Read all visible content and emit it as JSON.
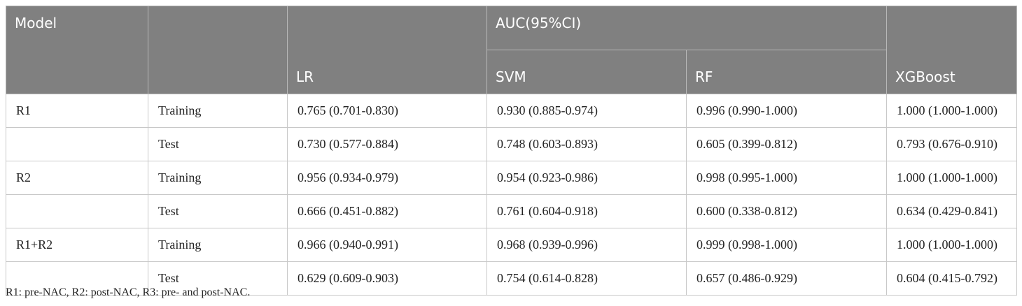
{
  "table": {
    "header": {
      "model": "Model",
      "auc": "AUC(95%CI)",
      "methods": [
        "LR",
        "SVM",
        "RF",
        "XGBoost"
      ]
    },
    "groups": [
      {
        "model": "R1",
        "rows": [
          {
            "set": "Training",
            "values": [
              "0.765 (0.701-0.830)",
              "0.930 (0.885-0.974)",
              "0.996 (0.990-1.000)",
              "1.000 (1.000-1.000)"
            ]
          },
          {
            "set": "Test",
            "values": [
              "0.730 (0.577-0.884)",
              "0.748 (0.603-0.893)",
              "0.605 (0.399-0.812)",
              "0.793 (0.676-0.910)"
            ]
          }
        ]
      },
      {
        "model": "R2",
        "rows": [
          {
            "set": "Training",
            "values": [
              "0.956 (0.934-0.979)",
              "0.954 (0.923-0.986)",
              "0.998 (0.995-1.000)",
              "1.000 (1.000-1.000)"
            ]
          },
          {
            "set": "Test",
            "values": [
              "0.666 (0.451-0.882)",
              "0.761 (0.604-0.918)",
              "0.600 (0.338-0.812)",
              "0.634 (0.429-0.841)"
            ]
          }
        ]
      },
      {
        "model": "R1+R2",
        "rows": [
          {
            "set": "Training",
            "values": [
              "0.966 (0.940-0.991)",
              "0.968 (0.939-0.996)",
              "0.999 (0.998-1.000)",
              "1.000 (1.000-1.000)"
            ]
          },
          {
            "set": "Test",
            "values": [
              "0.629 (0.609-0.903)",
              "0.754 (0.614-0.828)",
              "0.657 (0.486-0.929)",
              "0.604 (0.415-0.792)"
            ]
          }
        ]
      }
    ],
    "note": "R1: pre-NAC, R2: post-NAC, R3: pre- and post-NAC."
  }
}
